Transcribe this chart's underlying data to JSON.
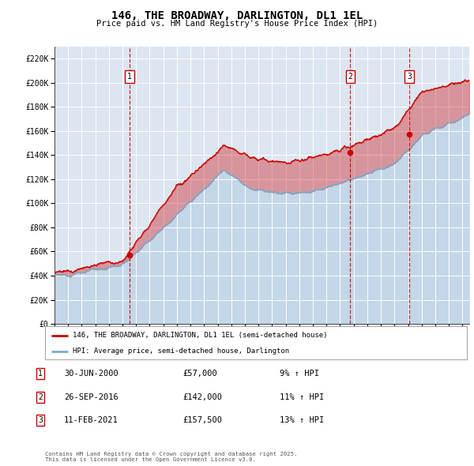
{
  "title": "146, THE BROADWAY, DARLINGTON, DL1 1EL",
  "subtitle": "Price paid vs. HM Land Registry's House Price Index (HPI)",
  "ylim": [
    0,
    230000
  ],
  "ytick_vals": [
    0,
    20000,
    40000,
    60000,
    80000,
    100000,
    120000,
    140000,
    160000,
    180000,
    200000,
    220000
  ],
  "background_color": "#ffffff",
  "plot_bg_color": "#dce6f1",
  "grid_color": "#ffffff",
  "sale_color": "#cc0000",
  "hpi_color": "#7aadce",
  "vline_color": "#cc0000",
  "purchases": [
    {
      "label": "1",
      "date_x": 2000.5,
      "price": 57000,
      "pct": "9%",
      "date_str": "30-JUN-2000"
    },
    {
      "label": "2",
      "date_x": 2016.75,
      "price": 142000,
      "pct": "11%",
      "date_str": "26-SEP-2016"
    },
    {
      "label": "3",
      "date_x": 2021.1,
      "price": 157500,
      "pct": "13%",
      "date_str": "11-FEB-2021"
    }
  ],
  "legend_entries": [
    "146, THE BROADWAY, DARLINGTON, DL1 1EL (semi-detached house)",
    "HPI: Average price, semi-detached house, Darlington"
  ],
  "footer": "Contains HM Land Registry data © Crown copyright and database right 2025.\nThis data is licensed under the Open Government Licence v3.0.",
  "xmin": 1995,
  "xmax": 2025.5
}
